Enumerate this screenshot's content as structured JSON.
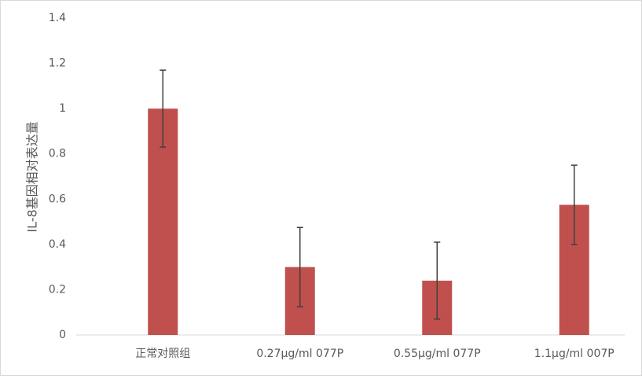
{
  "chart_data": {
    "type": "bar",
    "y_label": "IL-8基因相对表达量",
    "categories": [
      "正常对照组",
      "0.27μg/ml 077P",
      "0.55μg/ml 077P",
      "1.1μg/ml 007P"
    ],
    "values": [
      1.0,
      0.3,
      0.24,
      0.575
    ],
    "errors": [
      0.17,
      0.175,
      0.17,
      0.175
    ],
    "color": "#c0504d",
    "ylim": [
      0,
      1.4
    ],
    "yticks": [
      0,
      0.2,
      0.4,
      0.6,
      0.8,
      1,
      1.2,
      1.4
    ],
    "grid": false
  }
}
